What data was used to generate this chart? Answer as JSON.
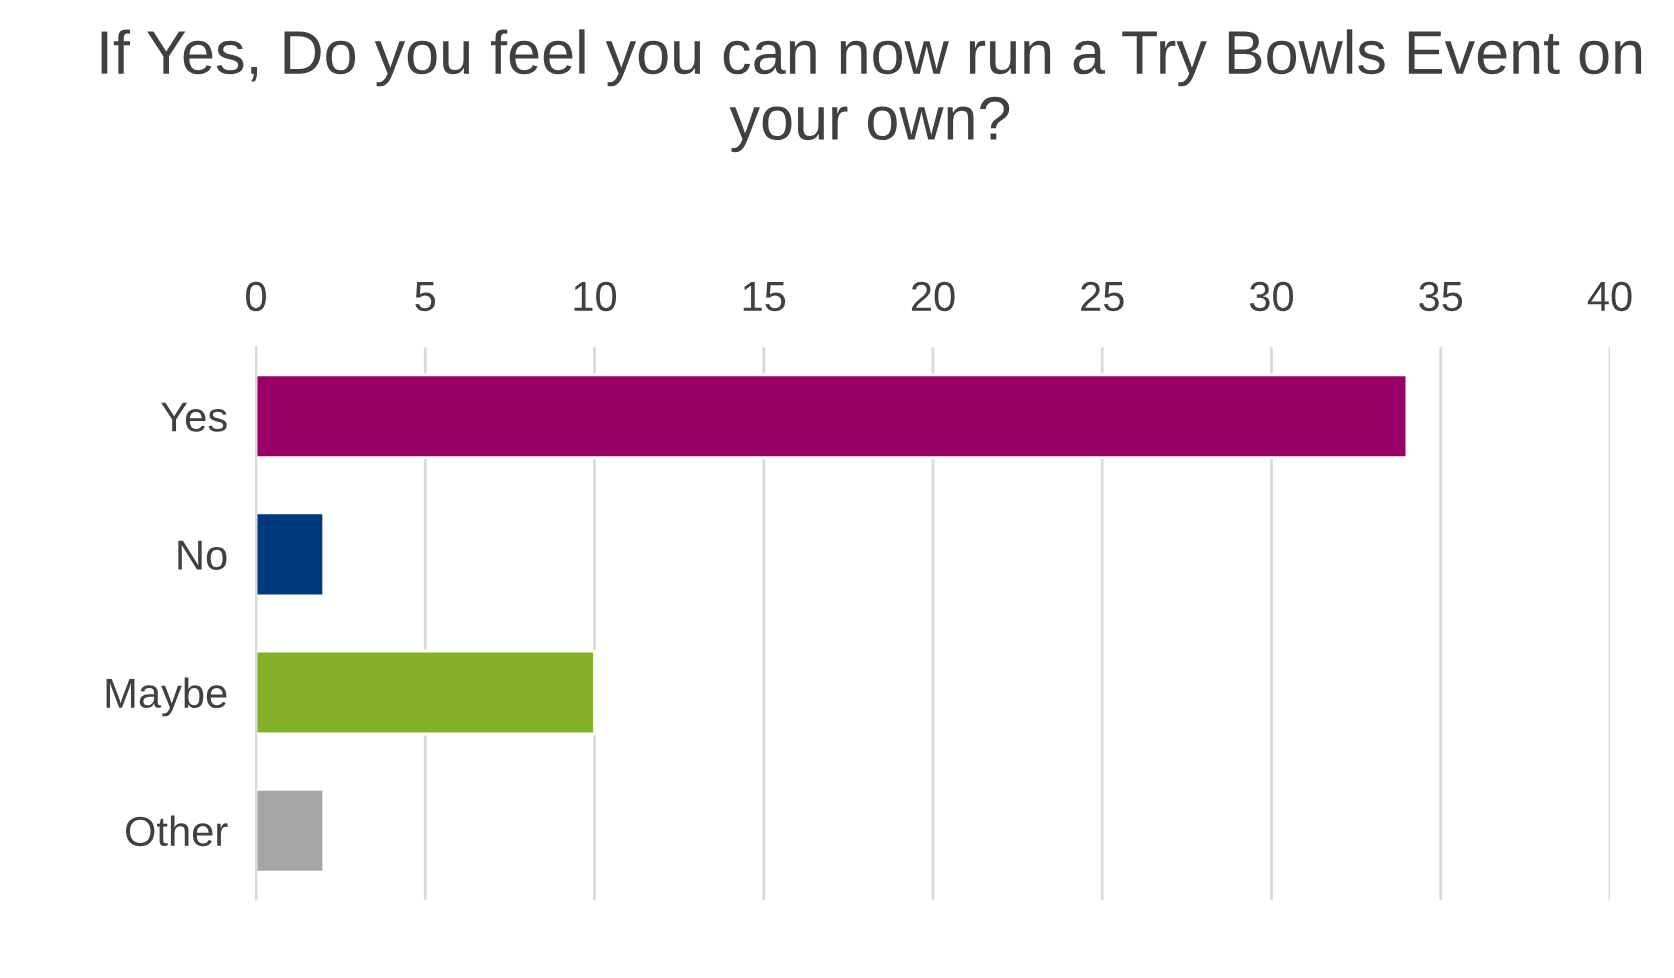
{
  "chart_data": {
    "type": "bar",
    "orientation": "horizontal",
    "title": "If Yes, Do you feel you can now run a Try Bowls Event on your own?",
    "categories": [
      "Yes",
      "No",
      "Maybe",
      "Other"
    ],
    "values": [
      34,
      2,
      10,
      2
    ],
    "colors": [
      "#990066",
      "#003a7d",
      "#84b02a",
      "#a5a5a5"
    ],
    "xlim": [
      0,
      40
    ],
    "xticks": [
      0,
      5,
      10,
      15,
      20,
      25,
      30,
      35,
      40
    ],
    "grid": "x",
    "legend": false
  }
}
